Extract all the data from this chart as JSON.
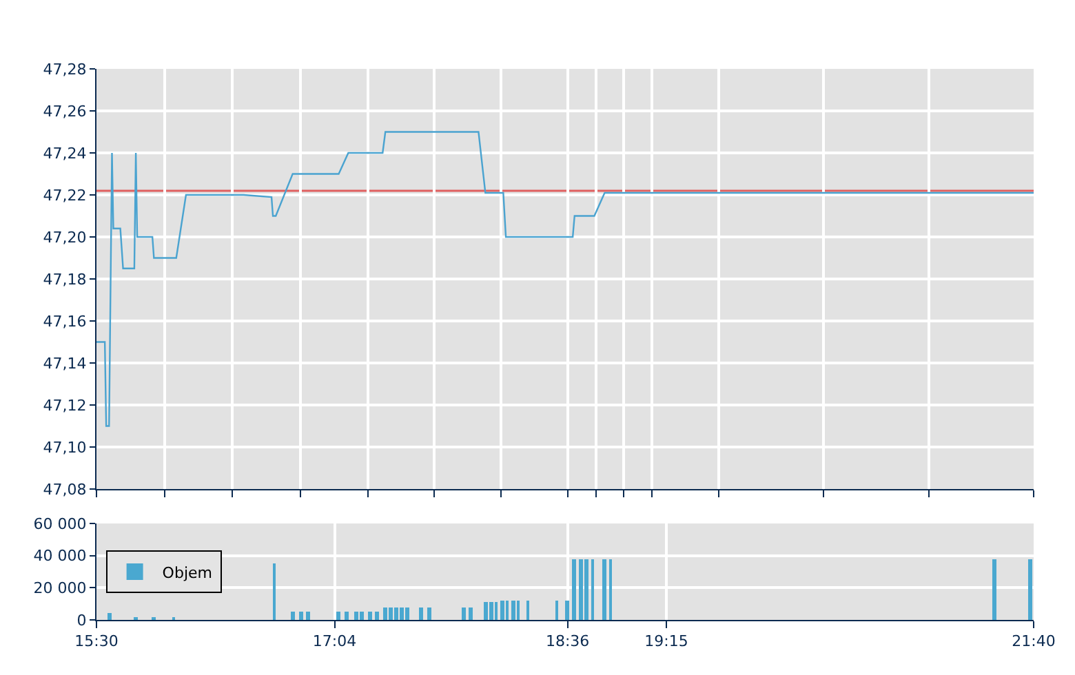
{
  "chart_data": [
    {
      "type": "line",
      "x": [
        15.5,
        15.555,
        15.564,
        15.583,
        15.602,
        15.611,
        15.657,
        15.675,
        15.749,
        15.759,
        15.768,
        15.868,
        15.878,
        16.025,
        16.089,
        16.468,
        16.652,
        16.661,
        16.68,
        16.791,
        17.094,
        17.157,
        17.383,
        17.401,
        18.014,
        18.059,
        18.177,
        18.194,
        18.634,
        18.646,
        18.776,
        18.844,
        21.667
      ],
      "values": [
        47.15,
        47.15,
        47.11,
        47.11,
        47.24,
        47.204,
        47.204,
        47.185,
        47.185,
        47.24,
        47.2,
        47.2,
        47.19,
        47.19,
        47.22,
        47.22,
        47.219,
        47.21,
        47.21,
        47.23,
        47.23,
        47.24,
        47.24,
        47.25,
        47.25,
        47.221,
        47.221,
        47.2,
        47.2,
        47.21,
        47.21,
        47.221,
        47.221
      ],
      "color": "#4aa3d0",
      "xlim": [
        15.5,
        21.667
      ],
      "xticks": [
        {
          "value": 15.5,
          "label": null
        },
        {
          "value": 15.948,
          "label": null
        },
        {
          "value": 16.395,
          "label": null
        },
        {
          "value": 16.843,
          "label": null
        },
        {
          "value": 17.286,
          "label": null
        },
        {
          "value": 17.724,
          "label": null
        },
        {
          "value": 18.162,
          "label": null
        },
        {
          "value": 18.6,
          "label": null
        },
        {
          "value": 18.786,
          "label": null
        },
        {
          "value": 18.971,
          "label": null
        },
        {
          "value": 19.157,
          "label": null
        },
        {
          "value": 19.595,
          "label": null
        },
        {
          "value": 20.286,
          "label": null
        },
        {
          "value": 20.976,
          "label": null
        },
        {
          "value": 21.667,
          "label": null
        }
      ],
      "ylim": [
        47.08,
        47.28
      ],
      "yticks": [
        {
          "value": 47.08,
          "label": "47,08"
        },
        {
          "value": 47.1,
          "label": "47,10"
        },
        {
          "value": 47.12,
          "label": "47,12"
        },
        {
          "value": 47.14,
          "label": "47,14"
        },
        {
          "value": 47.16,
          "label": "47,16"
        },
        {
          "value": 47.18,
          "label": "47,18"
        },
        {
          "value": 47.2,
          "label": "47,20"
        },
        {
          "value": 47.22,
          "label": "47,22"
        },
        {
          "value": 47.24,
          "label": "47,24"
        },
        {
          "value": 47.26,
          "label": "47,26"
        },
        {
          "value": 47.28,
          "label": "47,28"
        }
      ],
      "ref_lines": [
        {
          "axis": "y",
          "value": 47.222,
          "color": "#e06060"
        }
      ],
      "grid": true,
      "tick_labels": "y"
    },
    {
      "type": "bar",
      "x": [
        15.583,
        15.759,
        15.878,
        16.008,
        16.67,
        16.791,
        16.846,
        16.891,
        17.094,
        17.148,
        17.211,
        17.248,
        17.301,
        17.346,
        17.401,
        17.436,
        17.473,
        17.508,
        17.545,
        17.636,
        17.689,
        17.915,
        17.959,
        18.059,
        18.096,
        18.131,
        18.168,
        18.203,
        18.24,
        18.275,
        18.338,
        18.528,
        18.6,
        18.645,
        18.685,
        18.725,
        18.765,
        18.844,
        18.883,
        21.41,
        21.643
      ],
      "series": [
        {
          "name": "Objem",
          "color": "#4aa8d0",
          "values": [
            4000,
            1000,
            1000,
            1000,
            35000,
            5000,
            5000,
            5000,
            5000,
            5000,
            5000,
            5000,
            5000,
            5000,
            8000,
            8000,
            8000,
            8000,
            8000,
            8000,
            8000,
            8000,
            8000,
            11000,
            11000,
            11000,
            12000,
            12000,
            12000,
            12000,
            12000,
            12000,
            12000,
            38000,
            38000,
            38000,
            38000,
            38000,
            38000,
            38000,
            38000
          ]
        }
      ],
      "xlim": [
        15.5,
        21.667
      ],
      "xticks": [
        {
          "value": 15.5,
          "label": "15:30"
        },
        {
          "value": 17.0667,
          "label": "17:04"
        },
        {
          "value": 18.6,
          "label": "18:36"
        },
        {
          "value": 19.25,
          "label": "19:15"
        },
        {
          "value": 21.6667,
          "label": "21:40"
        }
      ],
      "ylim": [
        0,
        60000
      ],
      "yticks": [
        0,
        {
          "value": 20000,
          "label": "20 000"
        },
        {
          "value": 40000,
          "label": "40 000"
        },
        {
          "value": 60000,
          "label": "60 000"
        }
      ],
      "grid": true,
      "legend": "left"
    }
  ]
}
